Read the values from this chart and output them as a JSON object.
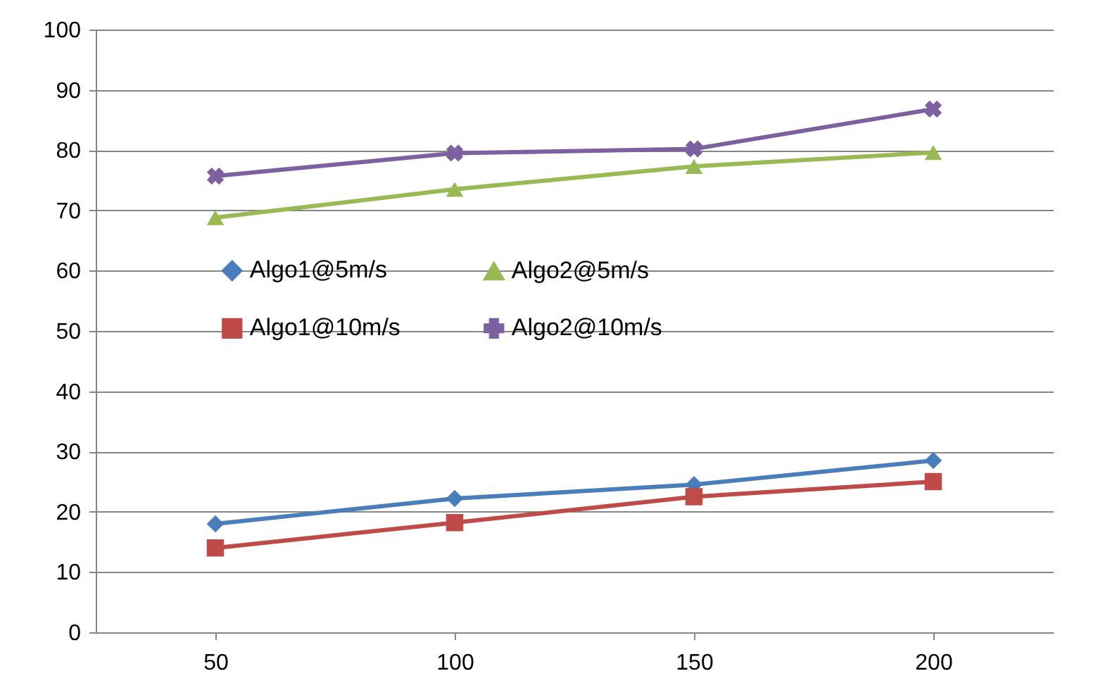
{
  "chart_data": {
    "type": "line",
    "categories": [
      "50",
      "100",
      "150",
      "200"
    ],
    "ylim": [
      0,
      100
    ],
    "yticks": [
      0,
      10,
      20,
      30,
      40,
      50,
      60,
      70,
      80,
      90,
      100
    ],
    "grid": "y",
    "legend": "left",
    "series": [
      {
        "name": "Algo1@5m/s",
        "color": "#4a7ebb",
        "marker": "diamond",
        "values": [
          18,
          22.2,
          24.5,
          28.5
        ]
      },
      {
        "name": "Algo1@10m/s",
        "color": "#be4b48",
        "marker": "square",
        "values": [
          14,
          18.2,
          22.5,
          25
        ]
      },
      {
        "name": "Algo2@5m/s",
        "color": "#98b954",
        "marker": "triangle",
        "values": [
          68.8,
          73.5,
          77.3,
          79.6
        ]
      },
      {
        "name": "Algo2@10m/s",
        "color": "#7d60a0",
        "marker": "cross",
        "values": [
          75.7,
          79.5,
          80.2,
          86.8
        ]
      }
    ]
  }
}
